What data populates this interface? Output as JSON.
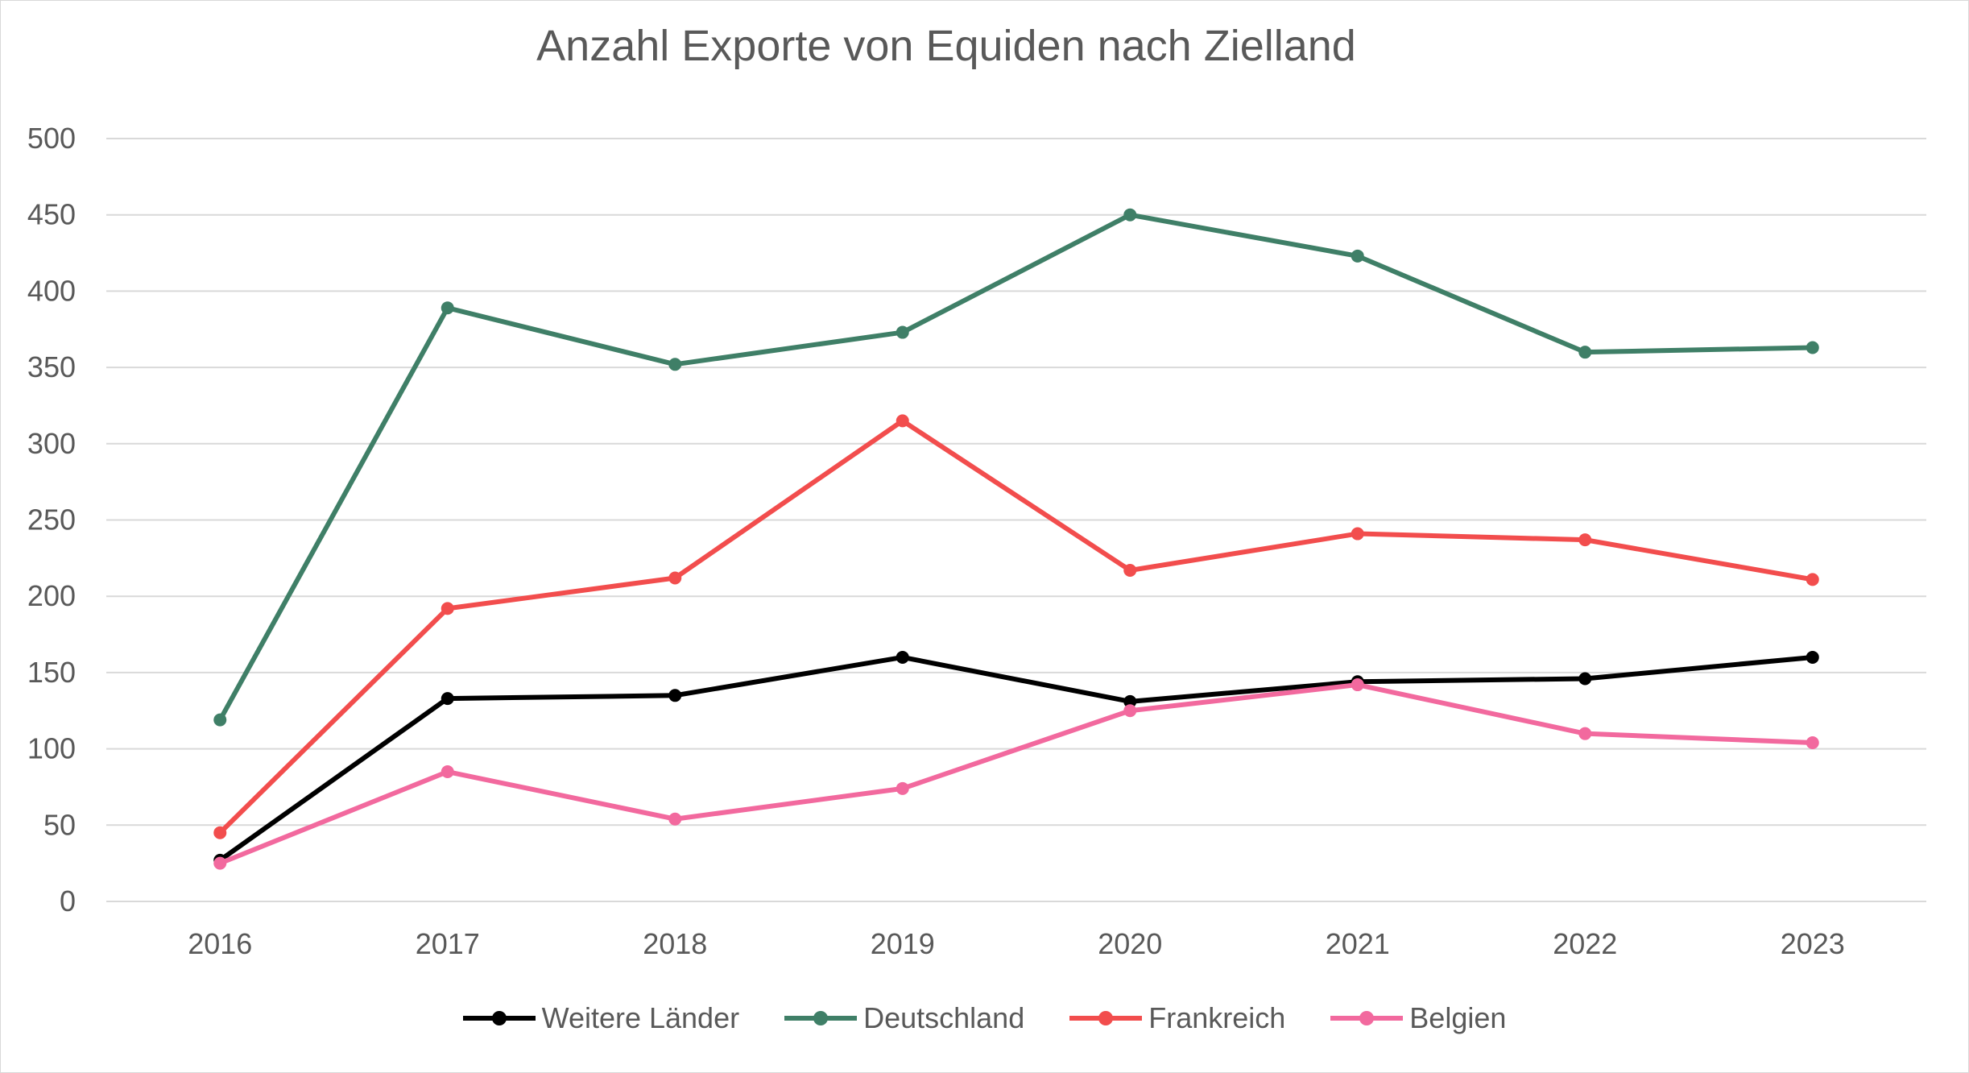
{
  "chart_data": {
    "type": "line",
    "title": "Anzahl Exporte von Equiden nach Zielland",
    "xlabel": "",
    "ylabel": "",
    "categories": [
      "2016",
      "2017",
      "2018",
      "2019",
      "2020",
      "2021",
      "2022",
      "2023"
    ],
    "ylim": [
      0,
      500
    ],
    "yticks": [
      "0",
      "50",
      "100",
      "150",
      "200",
      "250",
      "300",
      "350",
      "400",
      "450",
      "500"
    ],
    "grid": true,
    "legend_position": "bottom",
    "series": [
      {
        "name": "Weitere Länder",
        "color": "#000000",
        "values": [
          27,
          133,
          135,
          160,
          131,
          144,
          146,
          160
        ]
      },
      {
        "name": "Deutschland",
        "color": "#3f7f67",
        "values": [
          119,
          389,
          352,
          373,
          450,
          423,
          360,
          363
        ]
      },
      {
        "name": "Frankreich",
        "color": "#f24d4d",
        "values": [
          45,
          192,
          212,
          315,
          217,
          241,
          237,
          211
        ]
      },
      {
        "name": "Belgien",
        "color": "#f2699e",
        "values": [
          25,
          85,
          54,
          74,
          125,
          142,
          110,
          104
        ]
      }
    ]
  }
}
